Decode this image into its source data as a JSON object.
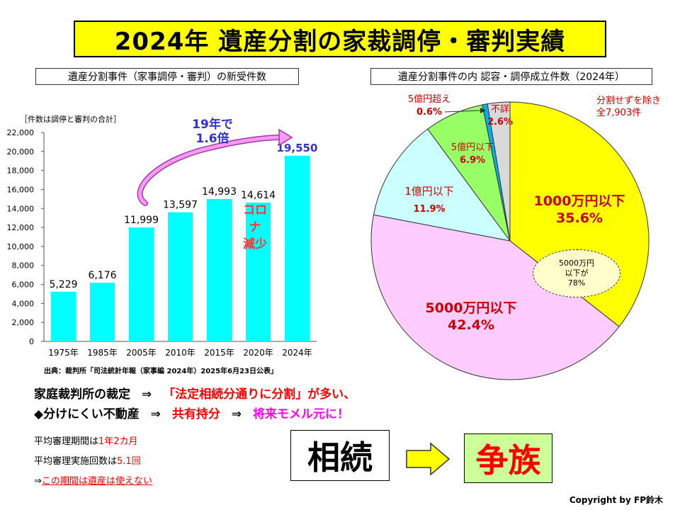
{
  "title": "2024年  遺産分割の家裁調停・審判実績",
  "left_panel": {
    "title": "遺産分割事件（家事調停・審判）の新受件数",
    "note": "［件数は調停と審判の合計］",
    "source": "出典：裁判所「司法統計年報（家事編  2024年）2025年6月23日公表」",
    "annot_growth": [
      "19年で",
      "1.6倍"
    ],
    "annot_covid": [
      "コロナ",
      "減少"
    ]
  },
  "right_panel": {
    "title": "遺産分割事件の内  認容・調停成立件数（2024年）",
    "annot_total": [
      "分割せずを除き",
      "全7,903件"
    ],
    "annot_bubble": [
      "5000万円",
      "以下が",
      "78%"
    ]
  },
  "chart_data": [
    {
      "type": "bar",
      "categories": [
        "1975年",
        "1985年",
        "2005年",
        "2010年",
        "2015年",
        "2020年",
        "2024年"
      ],
      "values": [
        5229,
        6176,
        11999,
        13597,
        14993,
        14614,
        19550
      ],
      "value_labels": [
        "5,229",
        "6,176",
        "11,999",
        "13,597",
        "14,993",
        "14,614",
        "19,550"
      ],
      "ylim": [
        0,
        22000
      ],
      "yticks": [
        "0",
        "2,000",
        "4,000",
        "6,000",
        "8,000",
        "10,000",
        "12,000",
        "14,000",
        "16,000",
        "18,000",
        "20,000",
        "22,000"
      ],
      "bar_color": "#00ffff",
      "grid": false
    },
    {
      "type": "pie",
      "slices": [
        {
          "label": "1000万円以下",
          "pct_label": "35.6%",
          "value": 35.6,
          "color": "#ffff00",
          "label_color": "#cc0000"
        },
        {
          "label": "5000万円以下",
          "pct_label": "42.4%",
          "value": 42.4,
          "color": "#ffccff",
          "label_color": "#cc0000"
        },
        {
          "label": "1億円以下",
          "pct_label": "11.9%",
          "value": 11.9,
          "color": "#ccffff",
          "label_color": "#cc0000"
        },
        {
          "label": "5億円以下",
          "pct_label": "6.9%",
          "value": 6.9,
          "color": "#99ff66",
          "label_color": "#cc0000"
        },
        {
          "label": "5億円超え",
          "pct_label": "0.6%",
          "value": 0.6,
          "color": "#00b0f0",
          "label_color": "#cc0000"
        },
        {
          "label": "不詳",
          "pct_label": "2.6%",
          "value": 2.6,
          "color": "#d9d9d9",
          "label_color": "#cc0000"
        }
      ]
    }
  ],
  "bottom": {
    "line1_a": "家庭裁判所の裁定",
    "line1_arrow": "⇒",
    "line1_b": "「法定相続分通りに分割」が多い、",
    "line2_a": "◆分けにくい不動産",
    "line2_arrow": "⇒",
    "line2_b": "共有持分",
    "line2_arrow2": "⇒",
    "line2_c": "将来モメル元に！",
    "period_label": "平均審理期間は",
    "period_value": "1年2カ月",
    "sessions_label": "平均審理実施回数は",
    "sessions_value": "5.1回",
    "note_arrow": "⇒",
    "note_text": "この期間は遺産は使えない",
    "box_souzoku": "相続",
    "box_souzoku_bg": "#ffffff",
    "box_arasoi": "争族",
    "box_arasoi_bg": "#ccff99",
    "box_arasoi_color": "#ff0000",
    "copyright": "Copyright by FP鈴木"
  }
}
